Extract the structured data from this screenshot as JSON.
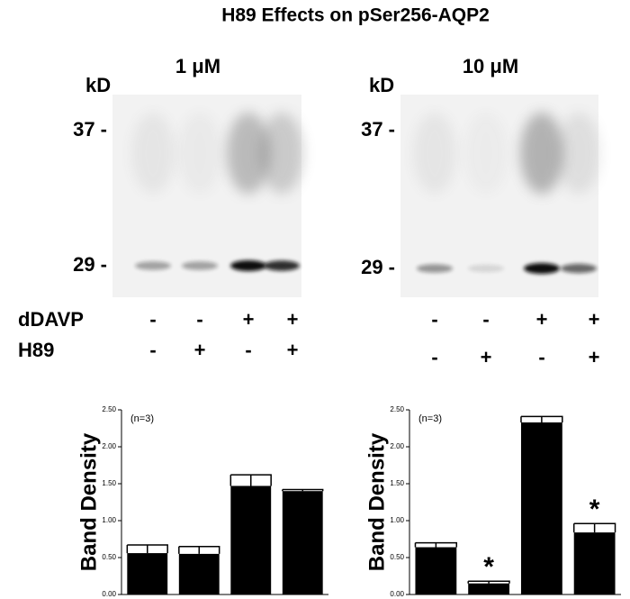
{
  "title": "H89 Effects on pSer256-AQP2",
  "blots": [
    {
      "concentration": "1 μM",
      "unit": "kD",
      "markers": [
        "37 -",
        "29 -"
      ]
    },
    {
      "concentration": "10 μM",
      "unit": "kD",
      "markers": [
        "37 -",
        "29 -"
      ]
    }
  ],
  "treatments": {
    "rows": [
      {
        "label": "dDAVP",
        "signs": [
          "-",
          "-",
          "+",
          "+"
        ]
      },
      {
        "label": "H89",
        "signs": [
          "-",
          "+",
          "-",
          "+"
        ]
      }
    ]
  },
  "chart_data": [
    {
      "type": "bar",
      "ylabel": "Band Density",
      "annotation": "(n=3)",
      "color": "#000000",
      "values": [
        0.56,
        0.55,
        1.47,
        1.4
      ],
      "errors": [
        0.11,
        0.1,
        0.15,
        0.02
      ],
      "ylim": [
        0,
        2.5
      ],
      "yticks": [
        {
          "value": 0,
          "label": "0.00"
        },
        {
          "value": 0.5,
          "label": "0.50"
        },
        {
          "value": 1,
          "label": "1.00"
        },
        {
          "value": 1.5,
          "label": "1.50"
        },
        {
          "value": 2,
          "label": "2.00"
        },
        {
          "value": 2.5,
          "label": "2.50"
        }
      ]
    },
    {
      "type": "bar",
      "ylabel": "Band Density",
      "annotation": "(n=3)",
      "color": "#000000",
      "values": [
        0.64,
        0.15,
        2.33,
        0.84
      ],
      "errors": [
        0.06,
        0.03,
        0.08,
        0.12
      ],
      "significance": [
        null,
        "*",
        null,
        "*"
      ],
      "ylim": [
        0,
        2.5
      ],
      "yticks": [
        {
          "value": 0,
          "label": "0.00"
        },
        {
          "value": 0.5,
          "label": "0.50"
        },
        {
          "value": 1,
          "label": "1.00"
        },
        {
          "value": 1.5,
          "label": "1.50"
        },
        {
          "value": 2,
          "label": "2.00"
        },
        {
          "value": 2.5,
          "label": "2.50"
        }
      ]
    }
  ]
}
